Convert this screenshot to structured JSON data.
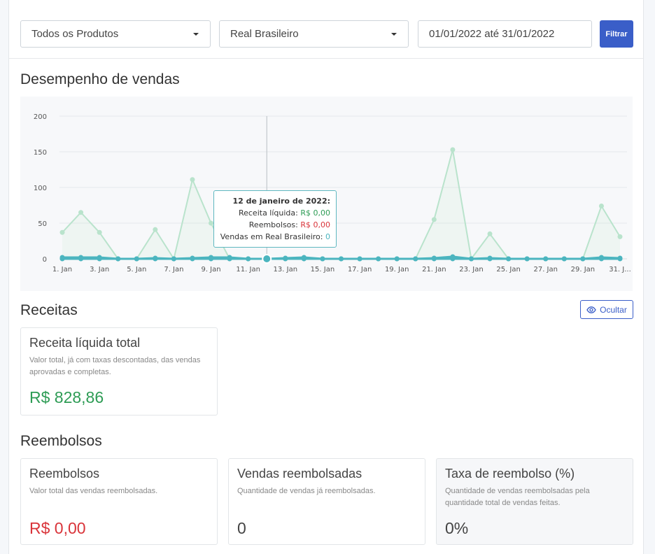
{
  "toolbar": {
    "product_select": "Todos os Produtos",
    "currency_select": "Real Brasileiro",
    "date_range": "01/01/2022 até 31/01/2022",
    "filter_label": "Filtrar"
  },
  "sales_section": {
    "title": "Desempenho de vendas"
  },
  "chart_data": {
    "type": "line",
    "x": [
      "1. Jan",
      "2. Jan",
      "3. Jan",
      "4. Jan",
      "5. Jan",
      "6. Jan",
      "7. Jan",
      "8. Jan",
      "9. Jan",
      "10. Jan",
      "11. Jan",
      "12. Jan",
      "13. Jan",
      "14. Jan",
      "15. Jan",
      "16. Jan",
      "17. Jan",
      "18. Jan",
      "19. Jan",
      "20. Jan",
      "21. Jan",
      "22. Jan",
      "23. Jan",
      "24. Jan",
      "25. Jan",
      "26. Jan",
      "27. Jan",
      "28. Jan",
      "29. Jan",
      "30. Jan",
      "31. Jan"
    ],
    "tick_labels": [
      "1. Jan",
      "3. Jan",
      "5. Jan",
      "7. Jan",
      "9. Jan",
      "11. Jan",
      "13. Jan",
      "15. Jan",
      "17. Jan",
      "19. Jan",
      "21. Jan",
      "23. Jan",
      "25. Jan",
      "27. Jan",
      "29. Jan",
      "31. J..."
    ],
    "y_ticks": [
      0,
      50,
      100,
      150,
      200
    ],
    "ylim": [
      0,
      200
    ],
    "series": [
      {
        "name": "Receita líquida",
        "color": "#b9e3cc",
        "values": [
          37,
          65,
          37,
          0,
          0,
          41,
          0,
          111,
          50,
          0,
          0,
          0,
          0,
          0,
          0,
          0,
          0,
          0,
          0,
          0,
          55,
          153,
          0,
          35,
          0,
          0,
          0,
          0,
          0,
          74,
          31
        ]
      },
      {
        "name": "Reembolsos",
        "color": "#4bb5bf",
        "values": [
          0,
          0,
          0,
          0,
          0,
          0,
          0,
          0,
          0,
          0,
          0,
          0,
          0,
          0,
          0,
          0,
          0,
          0,
          0,
          0,
          0,
          0,
          0,
          0,
          0,
          0,
          0,
          0,
          0,
          0,
          0
        ]
      },
      {
        "name": "Vendas em Real Brasileiro",
        "color": "#4bb5bf",
        "values": [
          2,
          2,
          2,
          0,
          0,
          1,
          0,
          1,
          2,
          2,
          0,
          0,
          1,
          2,
          0,
          0,
          0,
          0,
          0,
          0,
          1,
          3,
          0,
          1,
          0,
          0,
          0,
          0,
          0,
          2,
          1
        ]
      }
    ],
    "hover_index": 11,
    "tooltip": {
      "title": "12 de janeiro de 2022:",
      "rows": [
        {
          "label": "Receita líquida:",
          "value": "R$ 0,00",
          "color": "#2e9c55"
        },
        {
          "label": "Reembolsos:",
          "value": "R$ 0,00",
          "color": "#d9343a"
        },
        {
          "label": "Vendas em Real Brasileiro:",
          "value": "0",
          "color": "#4bb5bf"
        }
      ]
    }
  },
  "receitas": {
    "title": "Receitas",
    "hide_label": "Ocultar",
    "card": {
      "title": "Receita líquida total",
      "description": "Valor total, já com taxas descontadas, das vendas aprovadas e completas.",
      "value": "R$ 828,86",
      "color": "#2e9c55"
    }
  },
  "reembolsos": {
    "title": "Reembolsos",
    "cards": [
      {
        "title": "Reembolsos",
        "description": "Valor total das vendas reembolsadas.",
        "value": "R$ 0,00",
        "color": "#d9343a"
      },
      {
        "title": "Vendas reembolsadas",
        "description": "Quantidade de vendas já reembolsadas.",
        "value": "0",
        "color": "#444444"
      },
      {
        "title": "Taxa de reembolso (%)",
        "description": "Quantidade de vendas reembolsadas pela quantidade total de vendas feitas.",
        "value": "0%",
        "color": "#444444"
      }
    ]
  }
}
